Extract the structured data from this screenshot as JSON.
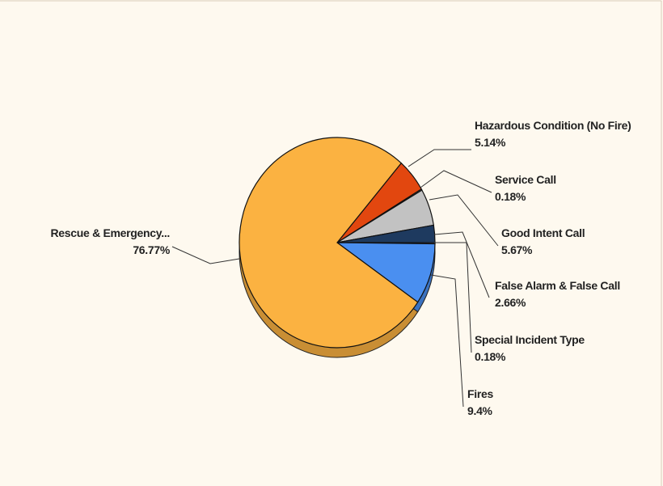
{
  "chart_data": {
    "type": "pie",
    "categories": [
      "Hazardous Condition (No Fire)",
      "Service Call",
      "Good Intent Call",
      "False Alarm & False Call",
      "Special Incident Type",
      "Fires",
      "Rescue & Emergency..."
    ],
    "values": [
      5.14,
      0.18,
      5.67,
      2.66,
      0.18,
      9.4,
      76.77
    ],
    "value_labels": [
      "5.14%",
      "0.18%",
      "5.67%",
      "2.66%",
      "0.18%",
      "9.4%",
      "76.77%"
    ],
    "colors": [
      "#e2470f",
      "#8a8a8a",
      "#c2c2c2",
      "#1e3a5f",
      "#6a6a9a",
      "#4a8ff0",
      "#fbb241"
    ]
  }
}
